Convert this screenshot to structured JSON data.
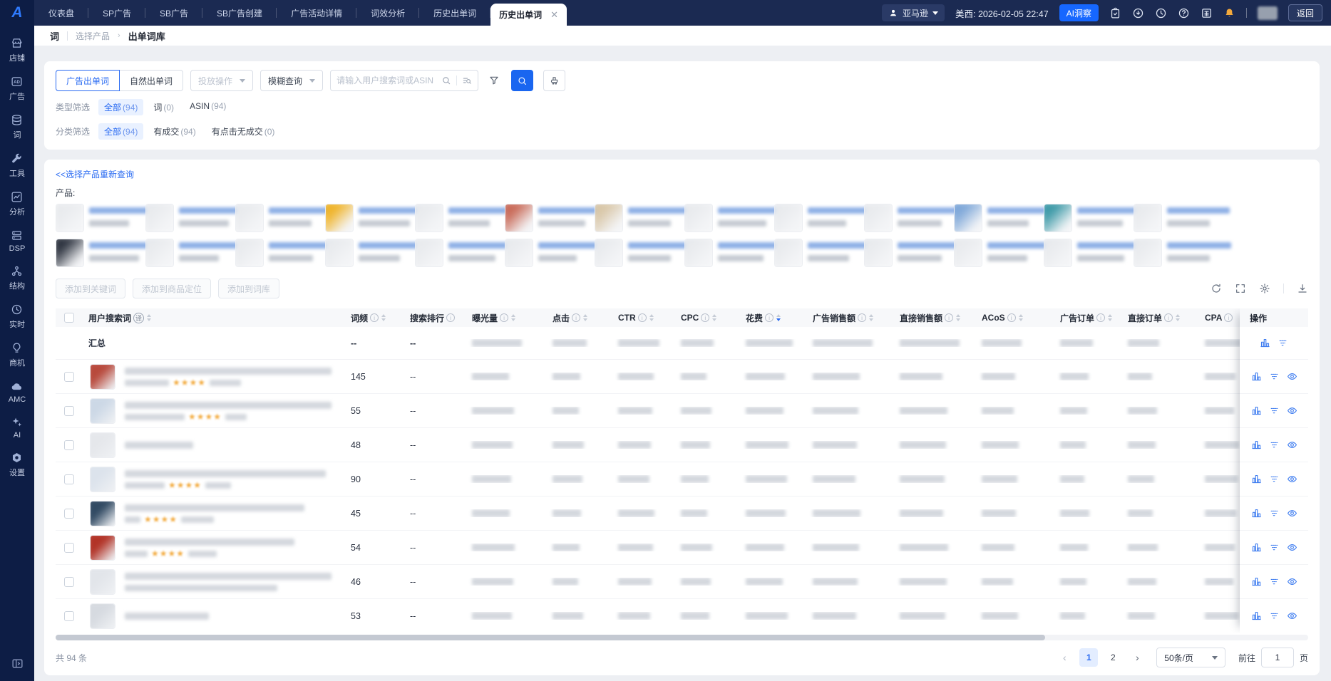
{
  "colors": {
    "accent": "#2A6BF2",
    "topbar_bg": "#1B2A52",
    "sidebar_bg": "#0D1D45",
    "ai_button_bg": "#1667FF",
    "star": "#F2A93B"
  },
  "sidebar": {
    "items": [
      {
        "id": "store",
        "label": "店铺"
      },
      {
        "id": "ad",
        "label": "广告"
      },
      {
        "id": "words",
        "label": "词"
      },
      {
        "id": "tools",
        "label": "工具"
      },
      {
        "id": "analysis",
        "label": "分析"
      },
      {
        "id": "dsp",
        "label": "DSP"
      },
      {
        "id": "structure",
        "label": "结构"
      },
      {
        "id": "realtime",
        "label": "实时"
      },
      {
        "id": "opportunity",
        "label": "商机"
      },
      {
        "id": "amc",
        "label": "AMC"
      },
      {
        "id": "ai",
        "label": "AI"
      },
      {
        "id": "settings",
        "label": "设置"
      }
    ]
  },
  "topbar": {
    "tabs": [
      "仪表盘",
      "SP广告",
      "SB广告",
      "SB广告创建",
      "广告活动详情",
      "词效分析",
      "历史出单词"
    ],
    "active_tab": "历史出单词",
    "close_glyph": "✕",
    "account": "亚马逊",
    "server_time": "美西: 2026-02-05 22:47",
    "ai_button": "AI洞察",
    "back_button": "返回"
  },
  "breadcrumb": {
    "root": "词",
    "parent": "选择产品",
    "current": "出单词库"
  },
  "filters": {
    "tab_ad": "广告出单词",
    "tab_natural": "自然出单词",
    "dropdown_operation": "投放操作",
    "dropdown_fuzzy": "模糊查询",
    "search_placeholder": "请输入用户搜索词或ASIN",
    "type_filter": {
      "label": "类型筛选",
      "options": [
        {
          "label": "全部",
          "count": "(94)",
          "active": true
        },
        {
          "label": "词",
          "count": "(0)",
          "active": false
        },
        {
          "label": "ASIN",
          "count": "(94)",
          "active": false
        }
      ]
    },
    "category_filter": {
      "label": "分类筛选",
      "options": [
        {
          "label": "全部",
          "count": "(94)",
          "active": true
        },
        {
          "label": "有成交",
          "count": "(94)",
          "active": false
        },
        {
          "label": "有点击无成交",
          "count": "(0)",
          "active": false
        }
      ]
    }
  },
  "products": {
    "reselect_link": "<<选择产品重新查询",
    "label": "产品:",
    "items": [
      {
        "c": "#e9ebee",
        "w1": 96,
        "w2": 56
      },
      {
        "c": "#e9ebee",
        "w1": 88,
        "w2": 70
      },
      {
        "c": "#e9ebee",
        "w1": 92,
        "w2": 60
      },
      {
        "c": "#f0b42a",
        "w1": 90,
        "w2": 72
      },
      {
        "c": "#e9ebee",
        "w1": 84,
        "w2": 58
      },
      {
        "c": "#c96a58",
        "w1": 94,
        "w2": 66
      },
      {
        "c": "#d9c7a8",
        "w1": 86,
        "w2": 60
      },
      {
        "c": "#e9ebee",
        "w1": 92,
        "w2": 68
      },
      {
        "c": "#e9ebee",
        "w1": 88,
        "w2": 54
      },
      {
        "c": "#e9ebee",
        "w1": 90,
        "w2": 62
      },
      {
        "c": "#7fa8d9",
        "w1": 86,
        "w2": 58
      },
      {
        "c": "#3e9aa8",
        "w1": 92,
        "w2": 64
      },
      {
        "c": "#e9ebee",
        "w1": 88,
        "w2": 60
      },
      {
        "c": "#2e3440",
        "w1": 96,
        "w2": 70
      },
      {
        "c": "#e9ebee",
        "w1": 86,
        "w2": 56
      },
      {
        "c": "#e9ebee",
        "w1": 92,
        "w2": 62
      },
      {
        "c": "#e9ebee",
        "w1": 84,
        "w2": 58
      },
      {
        "c": "#e9ebee",
        "w1": 90,
        "w2": 66
      },
      {
        "c": "#e9ebee",
        "w1": 88,
        "w2": 54
      },
      {
        "c": "#e9ebee",
        "w1": 94,
        "w2": 60
      },
      {
        "c": "#e9ebee",
        "w1": 86,
        "w2": 64
      },
      {
        "c": "#e9ebee",
        "w1": 90,
        "w2": 58
      },
      {
        "c": "#e9ebee",
        "w1": 84,
        "w2": 62
      },
      {
        "c": "#e9ebee",
        "w1": 92,
        "w2": 56
      },
      {
        "c": "#e9ebee",
        "w1": 88,
        "w2": 66
      },
      {
        "c": "#e9ebee",
        "w1": 90,
        "w2": 60
      }
    ]
  },
  "actions": {
    "add_keyword": "添加到关键词",
    "add_product_target": "添加到商品定位",
    "add_lexicon": "添加到词库"
  },
  "table": {
    "columns": [
      {
        "label": "用户搜索词",
        "translate": true,
        "info": false,
        "sort": true,
        "sorted": ""
      },
      {
        "label": "词频",
        "translate": false,
        "info": true,
        "sort": true,
        "sorted": ""
      },
      {
        "label": "搜索排行",
        "translate": false,
        "info": true,
        "sort": false,
        "sorted": ""
      },
      {
        "label": "曝光量",
        "translate": false,
        "info": true,
        "sort": true,
        "sorted": ""
      },
      {
        "label": "点击",
        "translate": false,
        "info": true,
        "sort": true,
        "sorted": ""
      },
      {
        "label": "CTR",
        "translate": false,
        "info": true,
        "sort": true,
        "sorted": ""
      },
      {
        "label": "CPC",
        "translate": false,
        "info": true,
        "sort": true,
        "sorted": ""
      },
      {
        "label": "花费",
        "translate": false,
        "info": true,
        "sort": true,
        "sorted": "desc"
      },
      {
        "label": "广告销售额",
        "translate": false,
        "info": true,
        "sort": true,
        "sorted": ""
      },
      {
        "label": "直接销售额",
        "translate": false,
        "info": true,
        "sort": true,
        "sorted": ""
      },
      {
        "label": "ACoS",
        "translate": false,
        "info": true,
        "sort": true,
        "sorted": ""
      },
      {
        "label": "广告订单",
        "translate": false,
        "info": true,
        "sort": true,
        "sorted": ""
      },
      {
        "label": "直接订单",
        "translate": false,
        "info": true,
        "sort": true,
        "sorted": ""
      },
      {
        "label": "CPA",
        "translate": false,
        "info": true,
        "sort": false,
        "sorted": ""
      },
      {
        "label": "操作",
        "translate": false,
        "info": false,
        "sort": false,
        "sorted": ""
      }
    ],
    "summary": {
      "label": "汇总",
      "freq": "--",
      "rank": "--"
    },
    "rows": [
      {
        "freq": "145",
        "rank": "--",
        "thumb": "#b8493c",
        "l1": 330,
        "stars": true,
        "pre": 62,
        "post": 44,
        "l2": 0
      },
      {
        "freq": "55",
        "rank": "--",
        "thumb": "#ccd8e6",
        "l1": 305,
        "stars": true,
        "pre": 84,
        "post": 30,
        "l2": 0
      },
      {
        "freq": "48",
        "rank": "--",
        "thumb": "#e5e7eb",
        "l1": 96,
        "stars": false,
        "pre": 0,
        "post": 0,
        "l2": 0
      },
      {
        "freq": "90",
        "rank": "--",
        "thumb": "#dce3ec",
        "l1": 282,
        "stars": true,
        "pre": 56,
        "post": 36,
        "l2": 0
      },
      {
        "freq": "45",
        "rank": "--",
        "thumb": "#314a63",
        "l1": 252,
        "stars": true,
        "pre": 22,
        "post": 46,
        "l2": 0
      },
      {
        "freq": "54",
        "rank": "--",
        "thumb": "#b23327",
        "l1": 238,
        "stars": true,
        "pre": 32,
        "post": 40,
        "l2": 0
      },
      {
        "freq": "46",
        "rank": "--",
        "thumb": "#e2e5ea",
        "l1": 300,
        "stars": false,
        "pre": 0,
        "post": 0,
        "l2": 214
      },
      {
        "freq": "53",
        "rank": "--",
        "thumb": "#d6dae0",
        "l1": 118,
        "stars": false,
        "pre": 0,
        "post": 0,
        "l2": 0
      }
    ]
  },
  "footer": {
    "total": "共 94 条",
    "prev": "‹",
    "next": "›",
    "pages": [
      {
        "label": "1",
        "active": true
      },
      {
        "label": "2",
        "active": false
      }
    ],
    "page_size": "50条/页",
    "goto_label": "前往",
    "goto_value": "1",
    "goto_unit": "页"
  }
}
